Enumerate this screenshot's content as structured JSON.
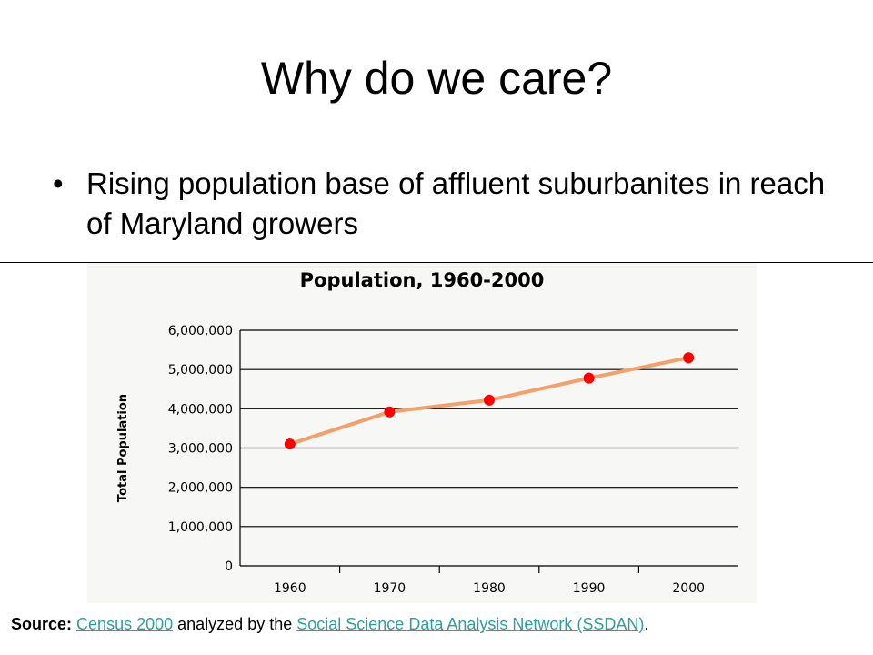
{
  "slide": {
    "title": "Why do we care?",
    "bullet_symbol": "•",
    "bullet": "Rising population base of affluent suburbanites in reach of Maryland growers"
  },
  "source": {
    "label": "Source:",
    "link1": "Census 2000",
    "middle": "analyzed by the",
    "link2": "Social Science Data Analysis Network (SSDAN)",
    "end": "."
  },
  "colors": {
    "line": "#f4a06a",
    "marker": "#ff0000",
    "link": "#2f9e9e",
    "panel": "#f7f7f5"
  },
  "chart_data": {
    "type": "line",
    "title": "Population, 1960-2000",
    "xlabel": "",
    "ylabel": "Total Population",
    "categories": [
      "1960",
      "1970",
      "1980",
      "1990",
      "2000"
    ],
    "series": [
      {
        "values": [
          3100000,
          3920000,
          4220000,
          4780000,
          5300000
        ]
      }
    ],
    "yticks": [
      "0",
      "1,000,000",
      "2,000,000",
      "3,000,000",
      "4,000,000",
      "5,000,000",
      "6,000,000"
    ],
    "ylim": [
      0,
      6000000
    ],
    "grid": true,
    "legend": "none"
  }
}
